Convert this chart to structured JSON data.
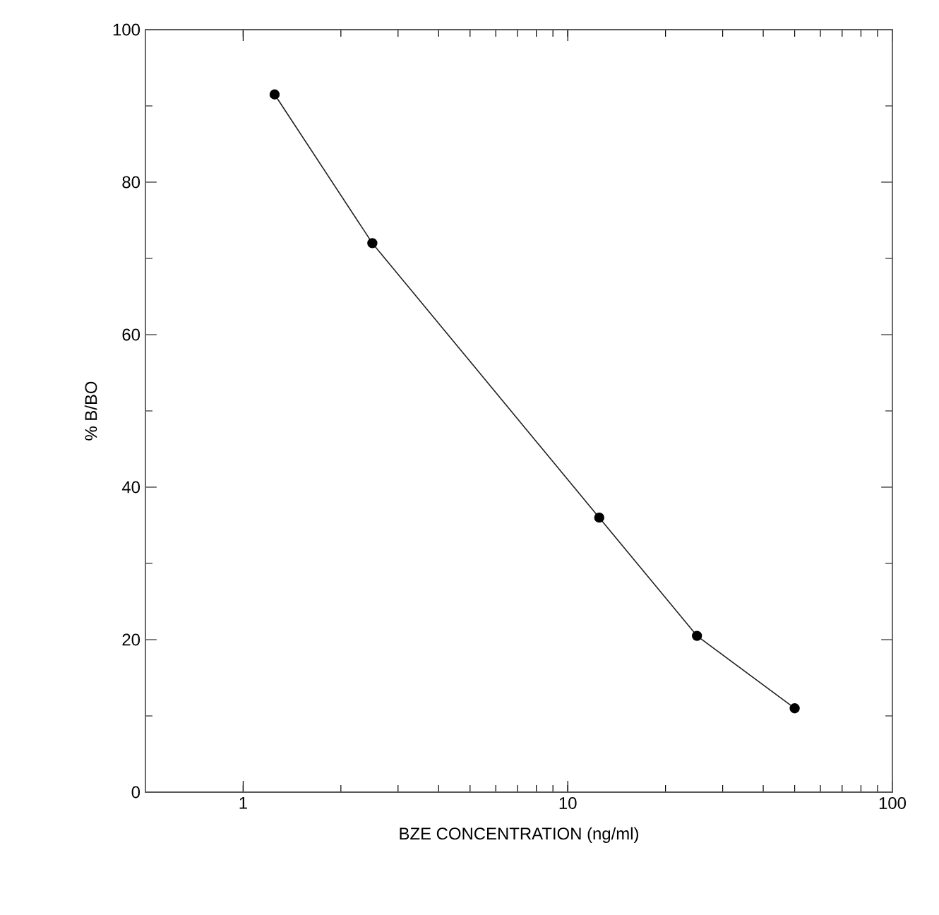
{
  "chart_data": {
    "type": "line",
    "xlabel": "BZE CONCENTRATION  (ng/ml)",
    "ylabel": "% B/BO",
    "log": "x",
    "x": [
      1.25,
      2.5,
      12.5,
      25,
      50
    ],
    "series": [
      {
        "color": "#202020",
        "values": [
          91.5,
          72,
          36,
          20.5,
          11
        ]
      }
    ],
    "xlim": [
      0.5,
      100
    ],
    "xticks": [
      1,
      10,
      100
    ],
    "ylim": [
      0,
      100
    ],
    "yticks": [
      0,
      20,
      40,
      60,
      80,
      100
    ],
    "marker": "circle",
    "line_style": "solid"
  }
}
